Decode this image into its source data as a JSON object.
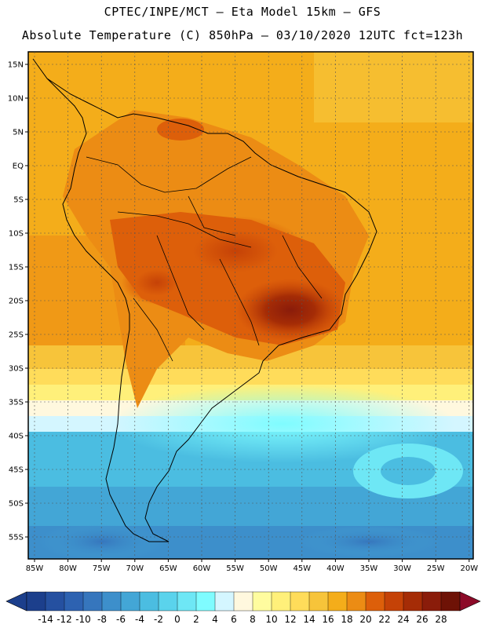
{
  "header": {
    "line1": "CPTEC/INPE/MCT –  Eta Model 15km – GFS",
    "line2": "Absolute Temperature (C) 850hPa – 03/10/2020 12UTC fct=123h"
  },
  "lat_labels": [
    "15N",
    "10N",
    "5N",
    "EQ",
    "5S",
    "10S",
    "15S",
    "20S",
    "25S",
    "30S",
    "35S",
    "40S",
    "45S",
    "50S",
    "55S"
  ],
  "lon_labels": [
    "85W",
    "80W",
    "75W",
    "70W",
    "65W",
    "60W",
    "55W",
    "50W",
    "45W",
    "40W",
    "35W",
    "30W",
    "25W",
    "20W"
  ],
  "colorbar": {
    "labels": [
      "-14",
      "-12",
      "-10",
      "-8",
      "-6",
      "-4",
      "-2",
      "0",
      "2",
      "4",
      "6",
      "8",
      "10",
      "12",
      "14",
      "16",
      "18",
      "20",
      "22",
      "24",
      "26",
      "28"
    ],
    "colors": [
      "#1c3f8c",
      "#2550a0",
      "#2d62b1",
      "#3676bd",
      "#3d8fcb",
      "#43a6d6",
      "#4bbde1",
      "#5ad3ec",
      "#6ee7f5",
      "#7ffcff",
      "#d4f6ff",
      "#fff8de",
      "#fffc9f",
      "#fff07a",
      "#ffdc5a",
      "#f7c43a",
      "#f4ad1a",
      "#ec8c14",
      "#dd5f0a",
      "#c54207",
      "#a52c06",
      "#8a1c0a",
      "#6e1206",
      "#8c0a28"
    ]
  }
}
